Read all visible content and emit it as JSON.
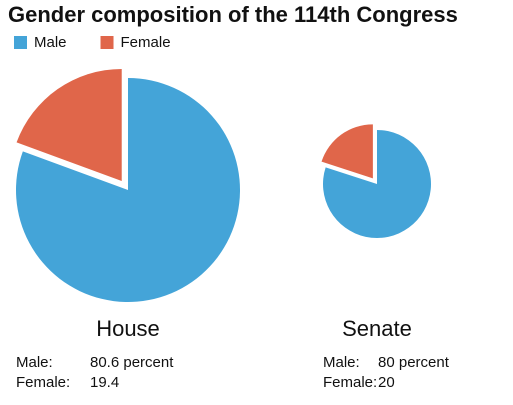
{
  "title": "Gender composition of the 114th Congress",
  "legend": [
    {
      "name": "Male",
      "color": "#44a4d8"
    },
    {
      "name": "Female",
      "color": "#e0664a"
    }
  ],
  "chart_data": [
    {
      "type": "pie",
      "title": "House",
      "categories": [
        "Male:",
        "Female:"
      ],
      "values": [
        80.6,
        19.4
      ],
      "value_labels": [
        "80.6 percent",
        "19.4"
      ],
      "colors": [
        "#44a4d8",
        "#e0664a"
      ]
    },
    {
      "type": "pie",
      "title": "Senate",
      "categories": [
        "Male:",
        "Female:"
      ],
      "values": [
        80,
        20
      ],
      "value_labels": [
        "80 percent",
        "20"
      ],
      "colors": [
        "#44a4d8",
        "#e0664a"
      ]
    }
  ]
}
